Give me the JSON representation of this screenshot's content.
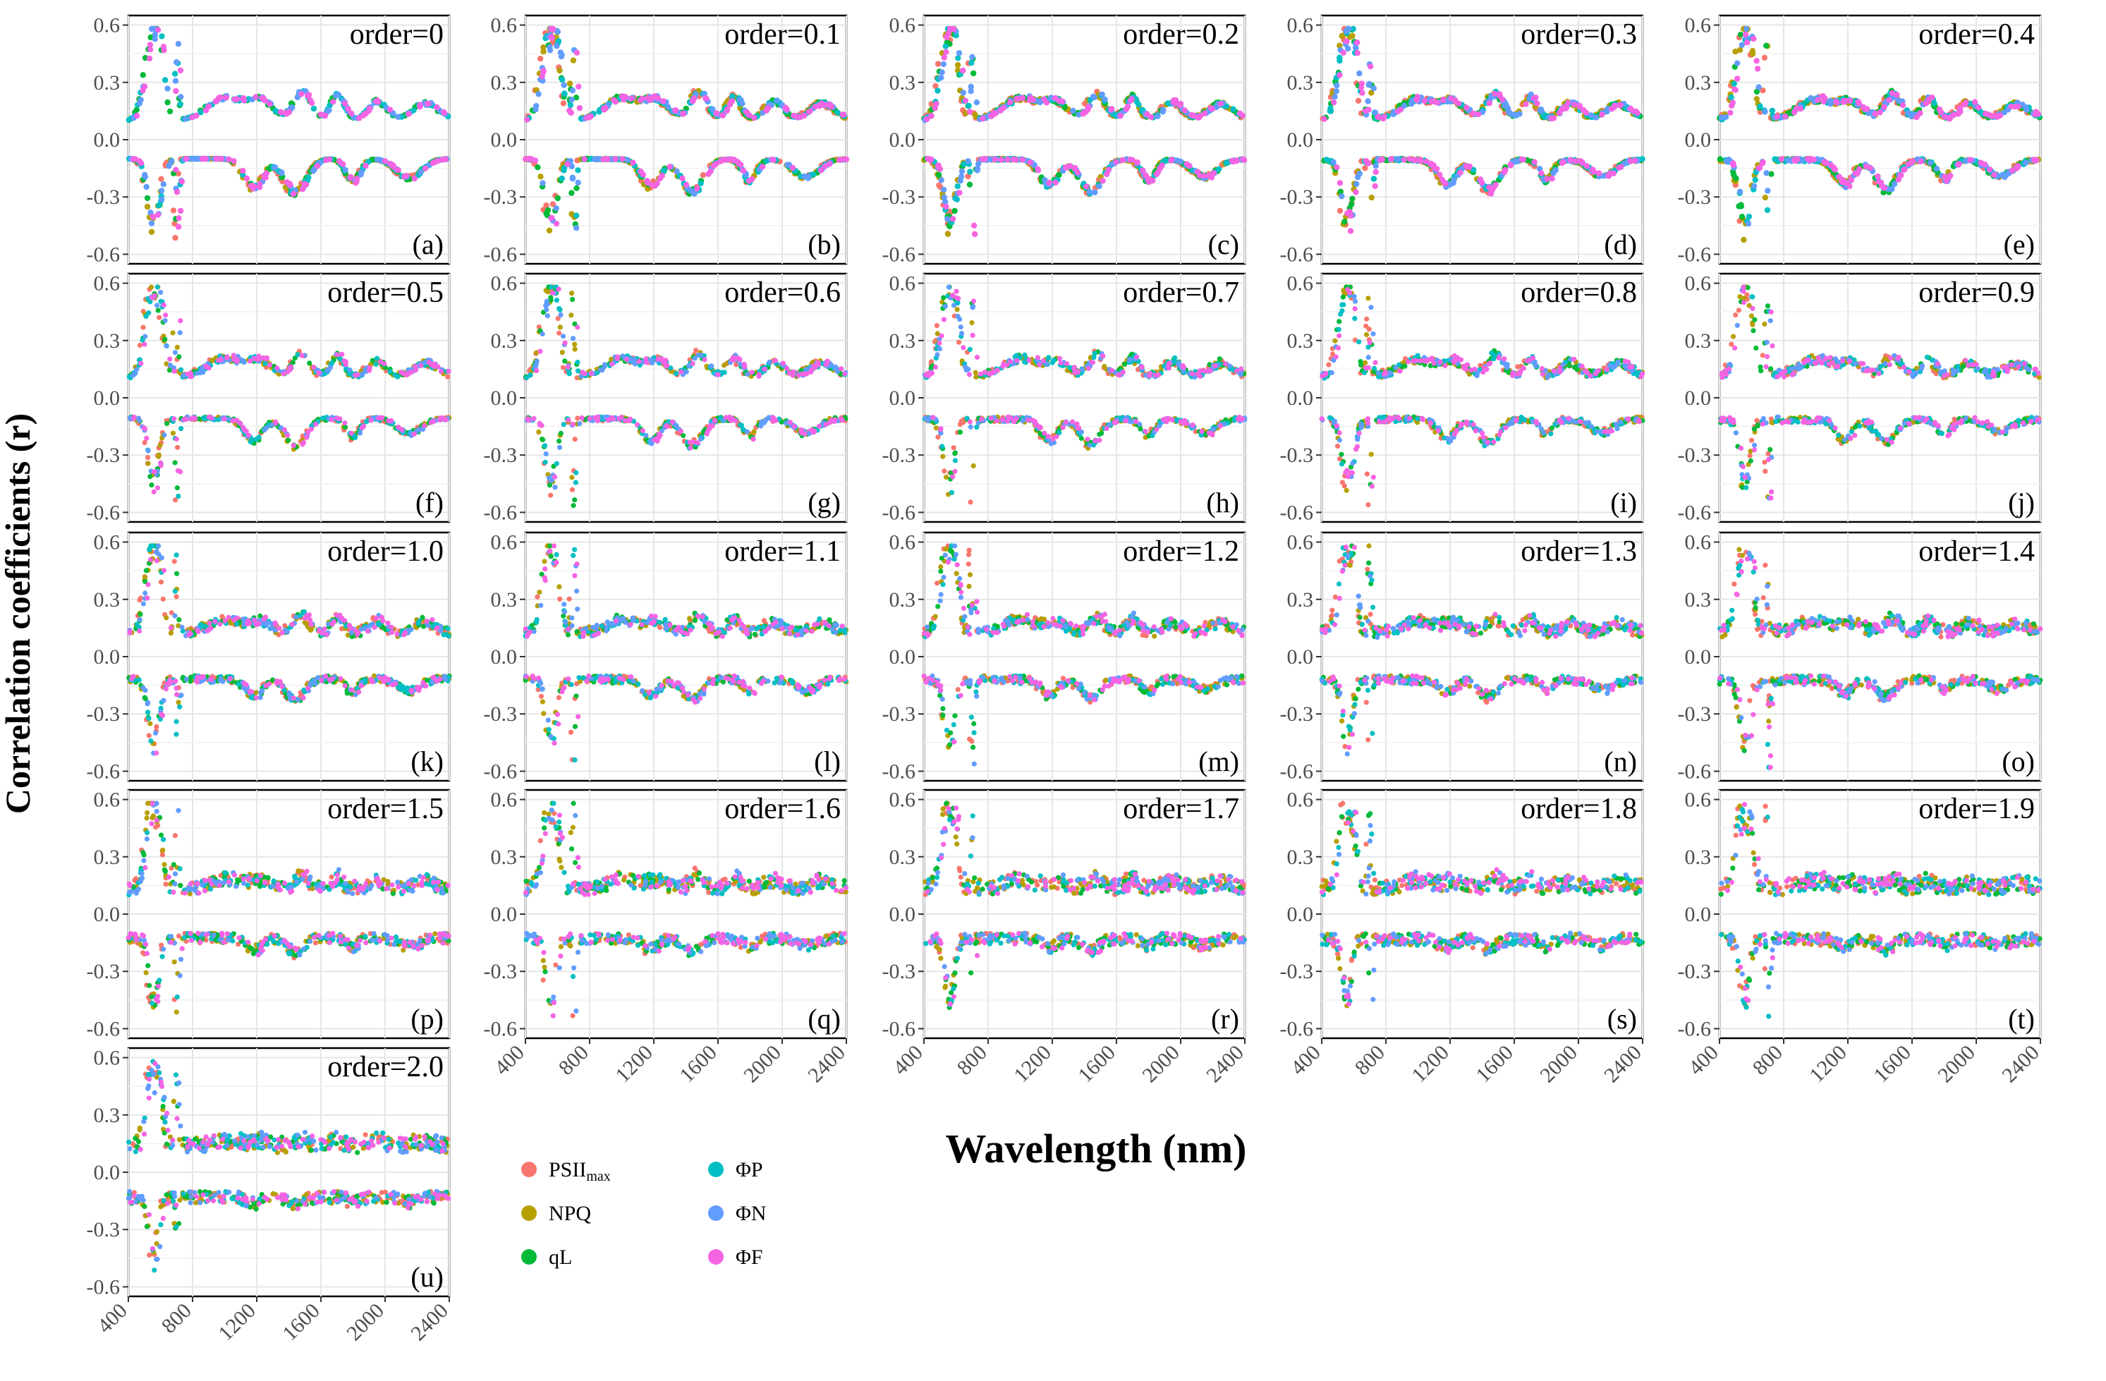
{
  "figure": {
    "ylabel": "Correlation coefficients (r)",
    "xlabel": "Wavelength (nm)"
  },
  "legend": [
    {
      "key": "psii",
      "label": "PSII",
      "sub": "max",
      "color": "#F8766D"
    },
    {
      "key": "npq",
      "label": "NPQ",
      "sub": "",
      "color": "#B79F00"
    },
    {
      "key": "ql",
      "label": "qL",
      "sub": "",
      "color": "#00BA38"
    },
    {
      "key": "phip",
      "label": "ΦP",
      "sub": "",
      "color": "#00BFC4"
    },
    {
      "key": "phin",
      "label": "ΦN",
      "sub": "",
      "color": "#619CFF"
    },
    {
      "key": "phif",
      "label": "ΦF",
      "sub": "",
      "color": "#F564E3"
    }
  ],
  "chart_data": {
    "type": "scatter",
    "description_of_series": "Correlation coefficient vs wavelength per fractional derivative order",
    "x_range": [
      400,
      2400
    ],
    "x_ticks": [
      400,
      800,
      1200,
      1600,
      2000,
      2400
    ],
    "x_tick_labels": [
      "400",
      "800",
      "1200",
      "1600",
      "2000",
      "2400"
    ],
    "y_range": [
      -0.65,
      0.65
    ],
    "y_ticks": [
      -0.6,
      -0.3,
      0.0,
      0.3,
      0.6
    ],
    "y_tick_labels": [
      "-0.6",
      "-0.3",
      "0.0",
      "0.3",
      "0.6"
    ],
    "threshold": 0.1,
    "series_names": [
      "PSIImax",
      "NPQ",
      "qL",
      "ΦP",
      "ΦN",
      "ΦF"
    ],
    "panels": [
      {
        "tag": "(a)",
        "title": "order=0",
        "order": 0.0
      },
      {
        "tag": "(b)",
        "title": "order=0.1",
        "order": 0.1
      },
      {
        "tag": "(c)",
        "title": "order=0.2",
        "order": 0.2
      },
      {
        "tag": "(d)",
        "title": "order=0.3",
        "order": 0.3
      },
      {
        "tag": "(e)",
        "title": "order=0.4",
        "order": 0.4
      },
      {
        "tag": "(f)",
        "title": "order=0.5",
        "order": 0.5
      },
      {
        "tag": "(g)",
        "title": "order=0.6",
        "order": 0.6
      },
      {
        "tag": "(h)",
        "title": "order=0.7",
        "order": 0.7
      },
      {
        "tag": "(i)",
        "title": "order=0.8",
        "order": 0.8
      },
      {
        "tag": "(j)",
        "title": "order=0.9",
        "order": 0.9
      },
      {
        "tag": "(k)",
        "title": "order=1.0",
        "order": 1.0
      },
      {
        "tag": "(l)",
        "title": "order=1.1",
        "order": 1.1
      },
      {
        "tag": "(m)",
        "title": "order=1.2",
        "order": 1.2
      },
      {
        "tag": "(n)",
        "title": "order=1.3",
        "order": 1.3
      },
      {
        "tag": "(o)",
        "title": "order=1.4",
        "order": 1.4
      },
      {
        "tag": "(p)",
        "title": "order=1.5",
        "order": 1.5
      },
      {
        "tag": "(q)",
        "title": "order=1.6",
        "order": 1.6
      },
      {
        "tag": "(r)",
        "title": "order=1.7",
        "order": 1.7
      },
      {
        "tag": "(s)",
        "title": "order=1.8",
        "order": 1.8
      },
      {
        "tag": "(t)",
        "title": "order=1.9",
        "order": 1.9
      },
      {
        "tag": "(u)",
        "title": "order=2.0",
        "order": 2.0
      }
    ]
  }
}
